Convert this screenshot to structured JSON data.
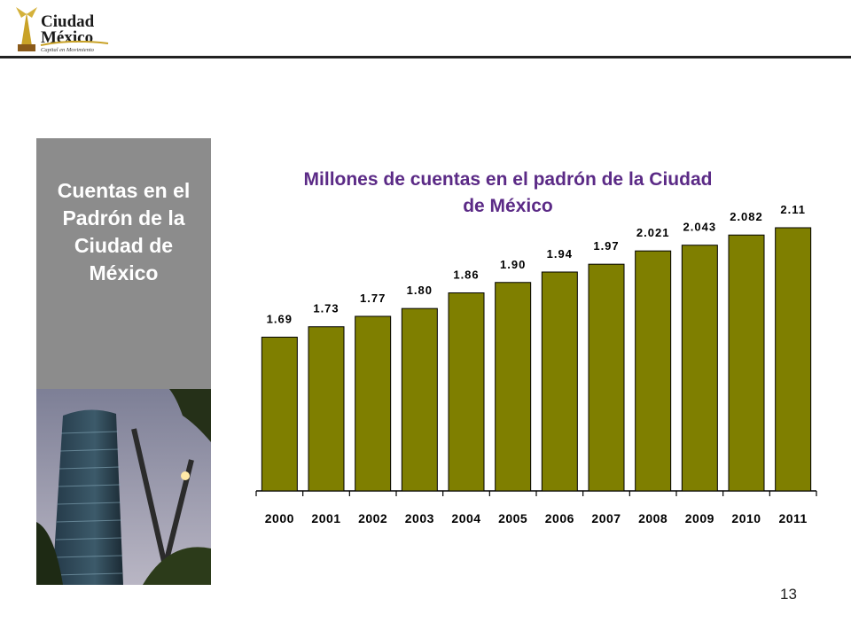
{
  "logo": {
    "word1": "Ciudad",
    "word2": "México",
    "tagline": "Capital en Movimiento"
  },
  "side_title": "Cuentas en el Padrón de la Ciudad de México",
  "page_number": "13",
  "colors": {
    "bar": "#7f7f00",
    "title": "#5b2a86",
    "side_box": "#8c8c8c"
  },
  "chart_data": {
    "type": "bar",
    "title": "Millones de cuentas en el padrón de la Ciudad de México",
    "categories": [
      "2000",
      "2001",
      "2002",
      "2003",
      "2004",
      "2005",
      "2006",
      "2007",
      "2008",
      "2009",
      "2010",
      "2011"
    ],
    "values": [
      1.69,
      1.73,
      1.77,
      1.8,
      1.86,
      1.9,
      1.94,
      1.97,
      2.021,
      2.043,
      2.082,
      2.11
    ],
    "value_labels": [
      "1.69",
      "1.73",
      "1.77",
      "1.80",
      "1.86",
      "1.90",
      "1.94",
      "1.97",
      "2.021",
      "2.043",
      "2.082",
      "2.11"
    ],
    "ylim": [
      1.1,
      2.11
    ],
    "grid": false,
    "legend": "none"
  }
}
